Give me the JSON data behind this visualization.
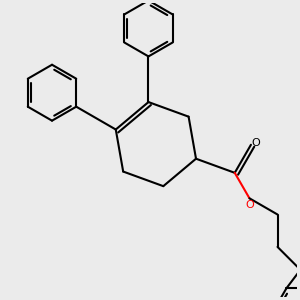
{
  "background_color": "#ebebeb",
  "line_color": "#000000",
  "oxygen_color": "#ff0000",
  "line_width": 1.5,
  "figsize": [
    3.0,
    3.0
  ],
  "dpi": 100
}
